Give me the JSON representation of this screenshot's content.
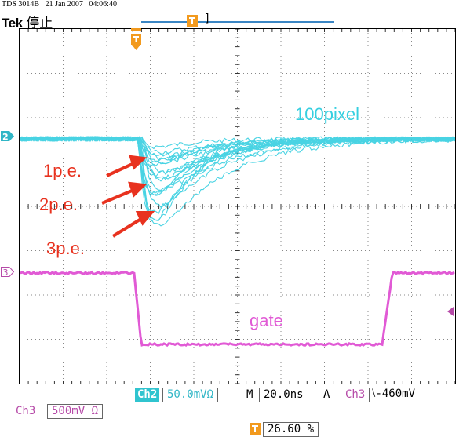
{
  "header": {
    "model": "TDS 3014B",
    "date": "21 Jan 2007",
    "time": "04:06:40",
    "brand": "Tek",
    "status": "停止"
  },
  "channel_markers": {
    "ch2": "2",
    "ch3": "3"
  },
  "trace_labels": {
    "ch2": "100pixel",
    "ch3": "gate"
  },
  "annotations": [
    "1p.e.",
    "2p.e.",
    "3p.e."
  ],
  "bottom_bar": {
    "ch2_chip": "Ch2",
    "ch2_scale": "50.0mVΩ",
    "timebase_prefix": "M",
    "timebase": "20.0ns",
    "acq_mode": "A",
    "trigger_source": "Ch3",
    "trigger_slope": "⌐",
    "trigger_level": "-460mV",
    "ch3_label": "Ch3",
    "ch3_scale": "500mV Ω",
    "trigger_position": "26.60 %"
  },
  "colors": {
    "ch2": "#36cfe0",
    "ch3": "#e15ad5",
    "trigger": "#f29a1e",
    "annotation": "#e8321f"
  }
}
